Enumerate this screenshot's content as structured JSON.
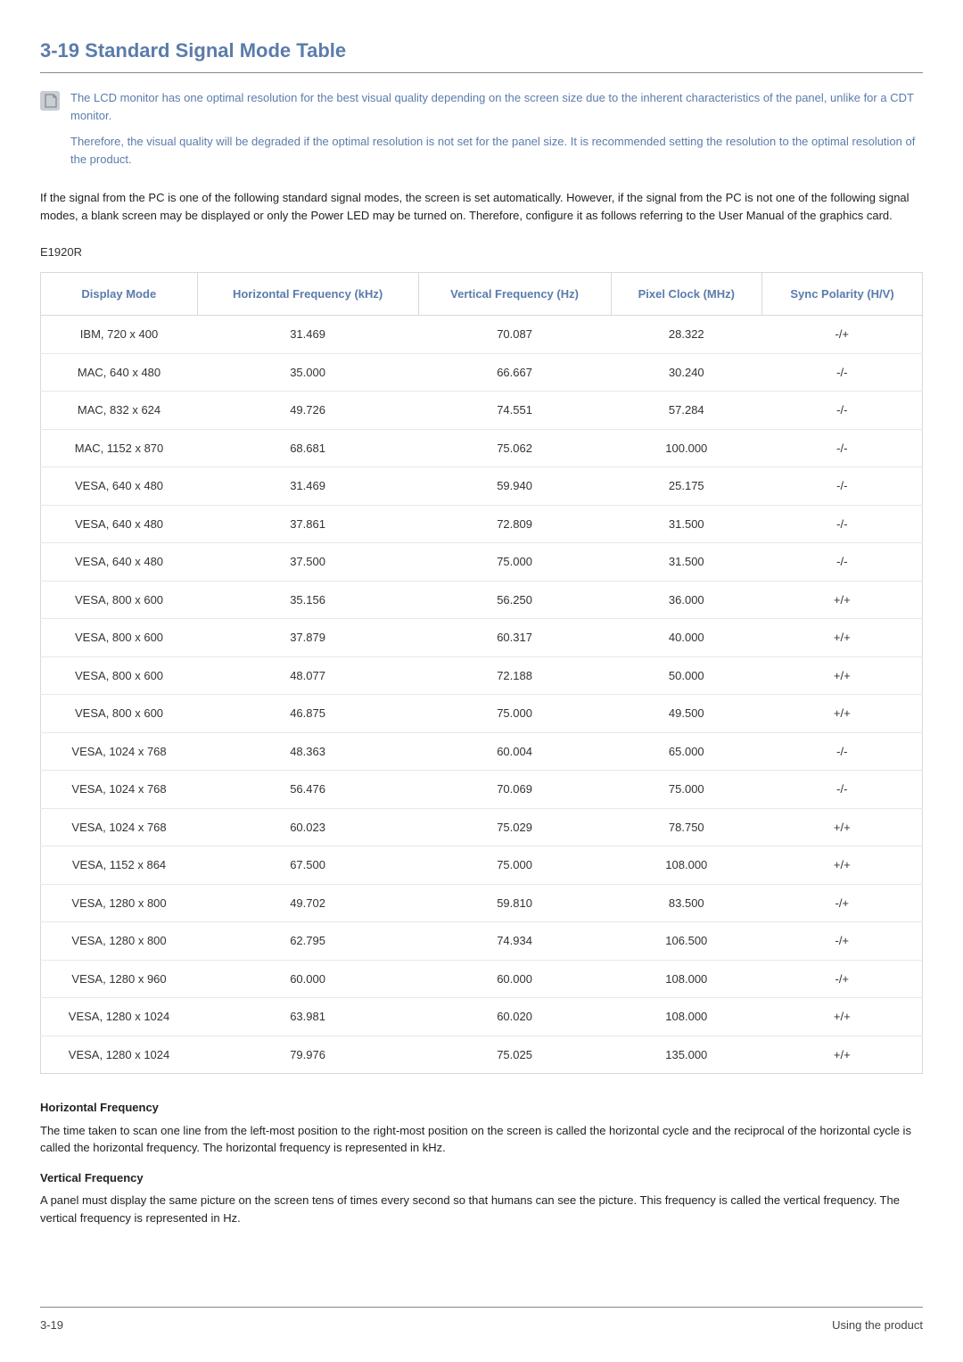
{
  "heading": "3-19  Standard Signal Mode Table",
  "note": {
    "p1": "The LCD monitor has one optimal resolution for the best visual quality depending on the screen size due to the inherent characteristics of the panel, unlike for a CDT monitor.",
    "p2": "Therefore, the visual quality will be degraded if the optimal resolution is not set for the panel size. It is recommended setting the resolution to the optimal resolution of the product."
  },
  "intro": "If the signal from the PC is one of the following standard signal modes, the screen is set automatically. However, if the signal from the PC is not one of the following signal modes, a blank screen may be displayed or only the Power LED may be turned on. Therefore, configure it as follows referring to the User Manual of the graphics card.",
  "model": "E1920R",
  "table": {
    "headers": {
      "c0": "Display Mode",
      "c1": "Horizontal Frequency (kHz)",
      "c2": "Vertical Frequency (Hz)",
      "c3": "Pixel Clock (MHz)",
      "c4": "Sync Polarity (H/V)"
    },
    "rows": [
      {
        "c0": "IBM, 720 x 400",
        "c1": "31.469",
        "c2": "70.087",
        "c3": "28.322",
        "c4": "-/+"
      },
      {
        "c0": "MAC, 640 x 480",
        "c1": "35.000",
        "c2": "66.667",
        "c3": "30.240",
        "c4": "-/-"
      },
      {
        "c0": "MAC, 832 x 624",
        "c1": "49.726",
        "c2": "74.551",
        "c3": "57.284",
        "c4": "-/-"
      },
      {
        "c0": "MAC, 1152 x 870",
        "c1": "68.681",
        "c2": "75.062",
        "c3": "100.000",
        "c4": "-/-"
      },
      {
        "c0": "VESA, 640 x 480",
        "c1": "31.469",
        "c2": "59.940",
        "c3": "25.175",
        "c4": "-/-"
      },
      {
        "c0": "VESA, 640 x 480",
        "c1": "37.861",
        "c2": "72.809",
        "c3": "31.500",
        "c4": "-/-"
      },
      {
        "c0": "VESA, 640 x 480",
        "c1": "37.500",
        "c2": "75.000",
        "c3": "31.500",
        "c4": "-/-"
      },
      {
        "c0": "VESA, 800 x 600",
        "c1": "35.156",
        "c2": "56.250",
        "c3": "36.000",
        "c4": "+/+"
      },
      {
        "c0": "VESA, 800 x 600",
        "c1": "37.879",
        "c2": "60.317",
        "c3": "40.000",
        "c4": "+/+"
      },
      {
        "c0": "VESA, 800 x 600",
        "c1": "48.077",
        "c2": "72.188",
        "c3": "50.000",
        "c4": "+/+"
      },
      {
        "c0": "VESA, 800 x 600",
        "c1": "46.875",
        "c2": "75.000",
        "c3": "49.500",
        "c4": "+/+"
      },
      {
        "c0": "VESA, 1024 x 768",
        "c1": "48.363",
        "c2": "60.004",
        "c3": "65.000",
        "c4": "-/-"
      },
      {
        "c0": "VESA, 1024 x 768",
        "c1": "56.476",
        "c2": "70.069",
        "c3": "75.000",
        "c4": "-/-"
      },
      {
        "c0": "VESA, 1024 x 768",
        "c1": "60.023",
        "c2": "75.029",
        "c3": "78.750",
        "c4": "+/+"
      },
      {
        "c0": "VESA, 1152 x 864",
        "c1": "67.500",
        "c2": "75.000",
        "c3": "108.000",
        "c4": "+/+"
      },
      {
        "c0": "VESA, 1280 x 800",
        "c1": "49.702",
        "c2": "59.810",
        "c3": "83.500",
        "c4": "-/+"
      },
      {
        "c0": "VESA, 1280 x 800",
        "c1": "62.795",
        "c2": "74.934",
        "c3": "106.500",
        "c4": "-/+"
      },
      {
        "c0": "VESA, 1280 x 960",
        "c1": "60.000",
        "c2": "60.000",
        "c3": "108.000",
        "c4": "-/+"
      },
      {
        "c0": "VESA, 1280 x 1024",
        "c1": "63.981",
        "c2": "60.020",
        "c3": "108.000",
        "c4": "+/+"
      },
      {
        "c0": "VESA, 1280 x 1024",
        "c1": "79.976",
        "c2": "75.025",
        "c3": "135.000",
        "c4": "+/+"
      }
    ]
  },
  "defs": {
    "hf_title": "Horizontal Frequency",
    "hf_body": "The time taken to scan one line from the left-most position to the right-most position on the screen is called the horizontal cycle and the reciprocal of the horizontal cycle is called the horizontal frequency. The horizontal frequency is represented in kHz.",
    "vf_title": "Vertical Frequency",
    "vf_body": "A panel must display the same picture on the screen tens of times every second so that humans can see the picture. This frequency is called the vertical frequency. The vertical frequency is represented in Hz."
  },
  "footer": {
    "left": "3-19",
    "right": "Using the product"
  },
  "colors": {
    "accent": "#5b7cab",
    "border": "#d6d9dd",
    "row_border": "#e6e8eb",
    "text": "#333333",
    "icon_bg": "#c9cdd4"
  }
}
